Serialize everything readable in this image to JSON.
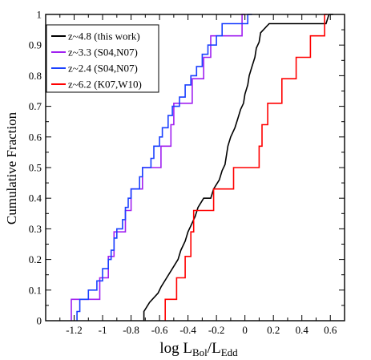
{
  "chart_data": {
    "type": "line",
    "step": true,
    "xlabel_main": "log L",
    "xlabel_sub1": "Bol",
    "xlabel_mid": "/L",
    "xlabel_sub2": "Edd",
    "ylabel": "Cumulative Fraction",
    "xlim": [
      -1.4,
      0.7
    ],
    "ylim": [
      0,
      1
    ],
    "xticks": [
      -1.2,
      -1,
      -0.8,
      -0.6,
      -0.4,
      -0.2,
      0,
      0.2,
      0.4,
      0.6
    ],
    "xtick_labels": [
      "-1.2",
      "-1",
      "-0.8",
      "-0.6",
      "-0.4",
      "-0.2",
      "0",
      "0.2",
      "0.4",
      "0.6"
    ],
    "yticks": [
      0,
      0.1,
      0.2,
      0.3,
      0.4,
      0.5,
      0.6,
      0.7,
      0.8,
      0.9,
      1
    ],
    "ytick_labels": [
      "0",
      "0.1",
      "0.2",
      "0.3",
      "0.4",
      "0.5",
      "0.6",
      "0.7",
      "0.8",
      "0.9",
      "1"
    ],
    "grid": false,
    "legend_position": "top-left",
    "series": [
      {
        "name": "z~4.8 (this work)",
        "color": "#000000",
        "points": [
          [
            -0.71,
            0.0
          ],
          [
            -0.71,
            0.03
          ],
          [
            -0.67,
            0.06
          ],
          [
            -0.61,
            0.09
          ],
          [
            -0.59,
            0.11
          ],
          [
            -0.55,
            0.14
          ],
          [
            -0.51,
            0.17
          ],
          [
            -0.47,
            0.2
          ],
          [
            -0.45,
            0.23
          ],
          [
            -0.42,
            0.26
          ],
          [
            -0.4,
            0.29
          ],
          [
            -0.38,
            0.31
          ],
          [
            -0.35,
            0.34
          ],
          [
            -0.33,
            0.37
          ],
          [
            -0.29,
            0.4
          ],
          [
            -0.24,
            0.4
          ],
          [
            -0.22,
            0.43
          ],
          [
            -0.18,
            0.46
          ],
          [
            -0.16,
            0.49
          ],
          [
            -0.14,
            0.51
          ],
          [
            -0.13,
            0.54
          ],
          [
            -0.12,
            0.57
          ],
          [
            -0.1,
            0.6
          ],
          [
            -0.07,
            0.63
          ],
          [
            -0.05,
            0.66
          ],
          [
            -0.03,
            0.69
          ],
          [
            -0.01,
            0.71
          ],
          [
            0.0,
            0.74
          ],
          [
            0.02,
            0.77
          ],
          [
            0.03,
            0.8
          ],
          [
            0.05,
            0.83
          ],
          [
            0.07,
            0.86
          ],
          [
            0.08,
            0.89
          ],
          [
            0.1,
            0.91
          ],
          [
            0.11,
            0.94
          ],
          [
            0.17,
            0.97
          ],
          [
            0.57,
            0.97
          ],
          [
            0.59,
            1.0
          ],
          [
            0.62,
            1.0
          ]
        ]
      },
      {
        "name": "z~3.3 (S04,N07)",
        "color": "#a020f0",
        "points": [
          [
            -1.22,
            0.0
          ],
          [
            -1.22,
            0.07
          ],
          [
            -1.02,
            0.07
          ],
          [
            -1.02,
            0.14
          ],
          [
            -0.96,
            0.14
          ],
          [
            -0.96,
            0.21
          ],
          [
            -0.92,
            0.21
          ],
          [
            -0.92,
            0.29
          ],
          [
            -0.84,
            0.29
          ],
          [
            -0.84,
            0.36
          ],
          [
            -0.8,
            0.36
          ],
          [
            -0.8,
            0.43
          ],
          [
            -0.72,
            0.43
          ],
          [
            -0.72,
            0.5
          ],
          [
            -0.59,
            0.5
          ],
          [
            -0.59,
            0.57
          ],
          [
            -0.52,
            0.57
          ],
          [
            -0.52,
            0.64
          ],
          [
            -0.5,
            0.64
          ],
          [
            -0.5,
            0.71
          ],
          [
            -0.37,
            0.71
          ],
          [
            -0.37,
            0.79
          ],
          [
            -0.29,
            0.79
          ],
          [
            -0.29,
            0.86
          ],
          [
            -0.24,
            0.86
          ],
          [
            -0.24,
            0.93
          ],
          [
            -0.02,
            0.93
          ],
          [
            -0.02,
            1.0
          ],
          [
            0.0,
            1.0
          ]
        ]
      },
      {
        "name": "z~2.4 (S04,N07)",
        "color": "#1a40ff",
        "points": [
          [
            -1.18,
            0.0
          ],
          [
            -1.18,
            0.03
          ],
          [
            -1.16,
            0.03
          ],
          [
            -1.16,
            0.07
          ],
          [
            -1.1,
            0.07
          ],
          [
            -1.1,
            0.1
          ],
          [
            -1.04,
            0.1
          ],
          [
            -1.04,
            0.13
          ],
          [
            -1.0,
            0.13
          ],
          [
            -1.0,
            0.17
          ],
          [
            -0.96,
            0.17
          ],
          [
            -0.96,
            0.2
          ],
          [
            -0.94,
            0.2
          ],
          [
            -0.94,
            0.23
          ],
          [
            -0.92,
            0.23
          ],
          [
            -0.92,
            0.27
          ],
          [
            -0.9,
            0.27
          ],
          [
            -0.9,
            0.3
          ],
          [
            -0.86,
            0.3
          ],
          [
            -0.86,
            0.33
          ],
          [
            -0.84,
            0.33
          ],
          [
            -0.84,
            0.37
          ],
          [
            -0.82,
            0.37
          ],
          [
            -0.82,
            0.4
          ],
          [
            -0.8,
            0.4
          ],
          [
            -0.8,
            0.43
          ],
          [
            -0.74,
            0.43
          ],
          [
            -0.74,
            0.47
          ],
          [
            -0.72,
            0.47
          ],
          [
            -0.72,
            0.5
          ],
          [
            -0.66,
            0.5
          ],
          [
            -0.66,
            0.53
          ],
          [
            -0.64,
            0.53
          ],
          [
            -0.64,
            0.57
          ],
          [
            -0.6,
            0.57
          ],
          [
            -0.6,
            0.6
          ],
          [
            -0.58,
            0.6
          ],
          [
            -0.58,
            0.63
          ],
          [
            -0.54,
            0.63
          ],
          [
            -0.54,
            0.67
          ],
          [
            -0.51,
            0.67
          ],
          [
            -0.51,
            0.7
          ],
          [
            -0.46,
            0.7
          ],
          [
            -0.46,
            0.73
          ],
          [
            -0.42,
            0.73
          ],
          [
            -0.42,
            0.77
          ],
          [
            -0.38,
            0.77
          ],
          [
            -0.38,
            0.8
          ],
          [
            -0.34,
            0.8
          ],
          [
            -0.34,
            0.83
          ],
          [
            -0.3,
            0.83
          ],
          [
            -0.3,
            0.87
          ],
          [
            -0.26,
            0.87
          ],
          [
            -0.26,
            0.9
          ],
          [
            -0.2,
            0.9
          ],
          [
            -0.2,
            0.93
          ],
          [
            -0.16,
            0.93
          ],
          [
            -0.16,
            0.97
          ],
          [
            0.02,
            0.97
          ],
          [
            0.02,
            1.0
          ],
          [
            0.05,
            1.0
          ]
        ]
      },
      {
        "name": "z~6.2 (K07,W10)",
        "color": "#ff0000",
        "points": [
          [
            -0.56,
            0.0
          ],
          [
            -0.56,
            0.07
          ],
          [
            -0.48,
            0.07
          ],
          [
            -0.48,
            0.14
          ],
          [
            -0.42,
            0.14
          ],
          [
            -0.42,
            0.21
          ],
          [
            -0.38,
            0.21
          ],
          [
            -0.38,
            0.29
          ],
          [
            -0.36,
            0.29
          ],
          [
            -0.36,
            0.36
          ],
          [
            -0.22,
            0.36
          ],
          [
            -0.22,
            0.43
          ],
          [
            -0.08,
            0.43
          ],
          [
            -0.08,
            0.5
          ],
          [
            0.1,
            0.5
          ],
          [
            0.1,
            0.57
          ],
          [
            0.12,
            0.57
          ],
          [
            0.12,
            0.64
          ],
          [
            0.16,
            0.64
          ],
          [
            0.16,
            0.71
          ],
          [
            0.26,
            0.71
          ],
          [
            0.26,
            0.79
          ],
          [
            0.36,
            0.79
          ],
          [
            0.36,
            0.86
          ],
          [
            0.46,
            0.86
          ],
          [
            0.46,
            0.93
          ],
          [
            0.56,
            0.93
          ],
          [
            0.56,
            1.0
          ],
          [
            0.58,
            1.0
          ]
        ]
      }
    ]
  }
}
